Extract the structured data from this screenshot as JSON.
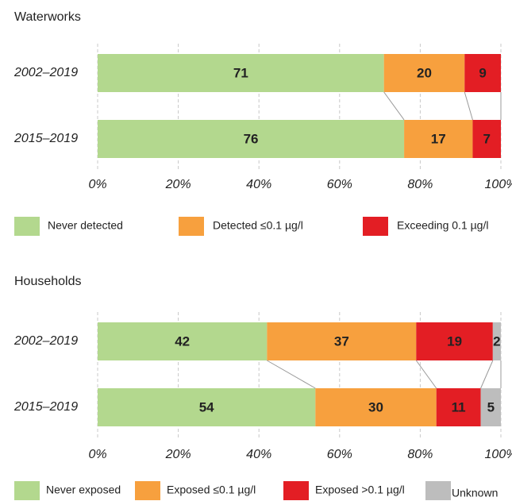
{
  "chart_data": [
    {
      "type": "bar",
      "title": "Waterworks",
      "categories": [
        "2002–2019",
        "2015–2019"
      ],
      "series": [
        {
          "name": "Never detected",
          "color": "#b3d88e",
          "values": [
            71,
            76
          ]
        },
        {
          "name": "Detected  ≤0.1 µg/l",
          "color": "#f7a03e",
          "values": [
            20,
            17
          ]
        },
        {
          "name": "Exceeding 0.1 µg/l",
          "color": "#e31e24",
          "values": [
            9,
            7
          ]
        }
      ],
      "xlim": [
        0,
        100
      ],
      "xticks": [
        {
          "value": 0,
          "label": "0%"
        },
        {
          "value": 20,
          "label": "20%"
        },
        {
          "value": 40,
          "label": "40%"
        },
        {
          "value": 60,
          "label": "60%"
        },
        {
          "value": 80,
          "label": "80%"
        },
        {
          "value": 100,
          "label": "100%"
        }
      ],
      "grid": true
    },
    {
      "type": "bar",
      "title": "Households",
      "categories": [
        "2002–2019",
        "2015–2019"
      ],
      "series": [
        {
          "name": "Never exposed",
          "color": "#b3d88e",
          "values": [
            42,
            54
          ]
        },
        {
          "name": "Exposed  ≤0.1 µg/l",
          "color": "#f7a03e",
          "values": [
            37,
            30
          ]
        },
        {
          "name": "Exposed >0.1 µg/l",
          "color": "#e31e24",
          "values": [
            19,
            11
          ]
        },
        {
          "name": "Unknown",
          "color": "#bdbdbd",
          "values": [
            2,
            5
          ]
        }
      ],
      "xlim": [
        0,
        100
      ],
      "xticks": [
        {
          "value": 0,
          "label": "0%"
        },
        {
          "value": 20,
          "label": "20%"
        },
        {
          "value": 40,
          "label": "40%"
        },
        {
          "value": 60,
          "label": "60%"
        },
        {
          "value": 80,
          "label": "80%"
        },
        {
          "value": 100,
          "label": "100%"
        }
      ],
      "grid": true
    }
  ]
}
